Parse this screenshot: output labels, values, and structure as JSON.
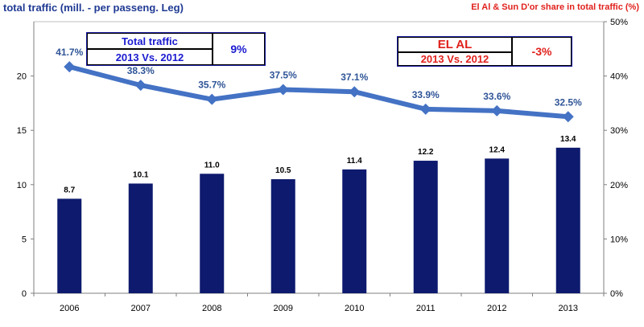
{
  "header": {
    "left_title": "total traffic (mill. - per passeng. Leg)",
    "right_title": "El Al & Sun D'or share in total traffic (%)"
  },
  "total_box": {
    "line1": "Total traffic",
    "line2": "2013 Vs. 2012",
    "value": "9%"
  },
  "elal_box": {
    "line1": "EL AL",
    "line2": "2013 Vs. 2012",
    "value": "-3%"
  },
  "colors": {
    "bar": "#0d1a6e",
    "line": "#4472c4",
    "bar_label": "#000000",
    "line_label": "#2f5597"
  },
  "chart_data": {
    "type": "bar+line",
    "categories": [
      "2006",
      "2007",
      "2008",
      "2009",
      "2010",
      "2011",
      "2012",
      "2013"
    ],
    "series": [
      {
        "name": "total traffic (mill. - per passeng. Leg)",
        "type": "bar",
        "axis": "left",
        "values": [
          8.7,
          10.1,
          11.0,
          10.5,
          11.4,
          12.2,
          12.4,
          13.4
        ],
        "labels": [
          "8.7",
          "10.1",
          "11.0",
          "10.5",
          "11.4",
          "12.2",
          "12.4",
          "13.4"
        ]
      },
      {
        "name": "El Al & Sun D'or share in total traffic (%)",
        "type": "line",
        "axis": "right",
        "values": [
          41.7,
          38.3,
          35.7,
          37.5,
          37.1,
          33.9,
          33.6,
          32.5
        ],
        "labels": [
          "41.7%",
          "38.3%",
          "35.7%",
          "37.5%",
          "37.1%",
          "33.9%",
          "33.6%",
          "32.5%"
        ]
      }
    ],
    "y_left": {
      "lim": [
        0,
        25
      ],
      "ticks": [
        "0",
        "5",
        "10",
        "15",
        "20"
      ],
      "tick_values": [
        0,
        5,
        10,
        15,
        20
      ]
    },
    "y_right": {
      "lim": [
        0,
        50
      ],
      "ticks": [
        "0%",
        "10%",
        "20%",
        "30%",
        "40%",
        "50%"
      ],
      "tick_values": [
        0,
        10,
        20,
        30,
        40,
        50
      ]
    },
    "grid": false,
    "legend": "none"
  }
}
